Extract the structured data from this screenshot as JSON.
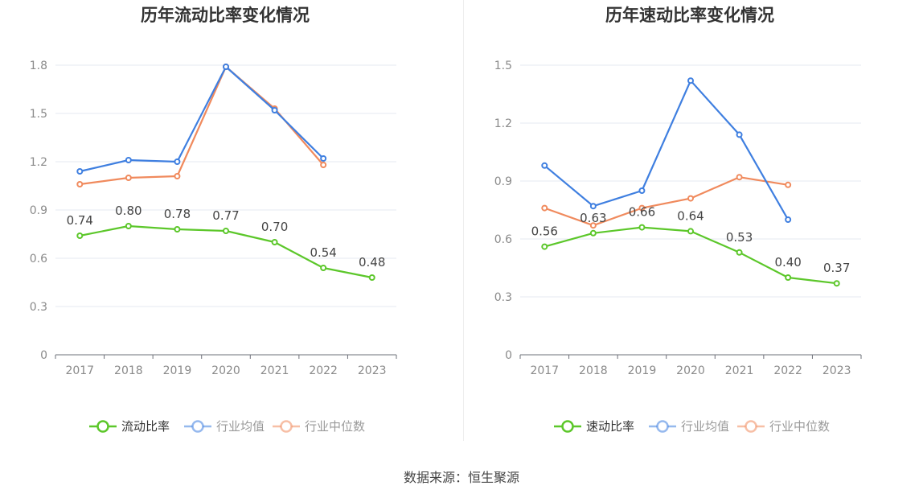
{
  "chart_data": [
    {
      "type": "line",
      "title": "历年流动比率变化情况",
      "categories": [
        "2017",
        "2018",
        "2019",
        "2020",
        "2021",
        "2022",
        "2023"
      ],
      "ylim": [
        0,
        1.8
      ],
      "yticks": [
        "0",
        "0.3",
        "0.6",
        "0.9",
        "1.2",
        "1.5",
        "1.8"
      ],
      "grid": true,
      "legend_position": "bottom",
      "series": [
        {
          "name": "流动比率",
          "color": "#5cc72a",
          "values": [
            0.74,
            0.8,
            0.78,
            0.77,
            0.7,
            0.54,
            0.48
          ],
          "labels": [
            "0.74",
            "0.80",
            "0.78",
            "0.77",
            "0.70",
            "0.54",
            "0.48"
          ]
        },
        {
          "name": "行业均值",
          "color": "#3f7fe0",
          "values": [
            1.14,
            1.21,
            1.2,
            1.79,
            1.52,
            1.22,
            null
          ]
        },
        {
          "name": "行业中位数",
          "color": "#f08a5d",
          "values": [
            1.06,
            1.1,
            1.11,
            1.79,
            1.53,
            1.18,
            null
          ]
        }
      ]
    },
    {
      "type": "line",
      "title": "历年速动比率变化情况",
      "categories": [
        "2017",
        "2018",
        "2019",
        "2020",
        "2021",
        "2022",
        "2023"
      ],
      "ylim": [
        0,
        1.5
      ],
      "yticks": [
        "0",
        "0.3",
        "0.6",
        "0.9",
        "1.2",
        "1.5"
      ],
      "grid": true,
      "legend_position": "bottom",
      "series": [
        {
          "name": "速动比率",
          "color": "#5cc72a",
          "values": [
            0.56,
            0.63,
            0.66,
            0.64,
            0.53,
            0.4,
            0.37
          ],
          "labels": [
            "0.56",
            "0.63",
            "0.66",
            "0.64",
            "0.53",
            "0.40",
            "0.37"
          ]
        },
        {
          "name": "行业均值",
          "color": "#3f7fe0",
          "values": [
            0.98,
            0.77,
            0.85,
            1.42,
            1.14,
            0.7,
            null
          ]
        },
        {
          "name": "行业中位数",
          "color": "#f08a5d",
          "values": [
            0.76,
            0.67,
            0.76,
            0.81,
            0.92,
            0.88,
            null
          ]
        }
      ]
    }
  ],
  "footer": {
    "source": "数据来源：恒生聚源"
  }
}
